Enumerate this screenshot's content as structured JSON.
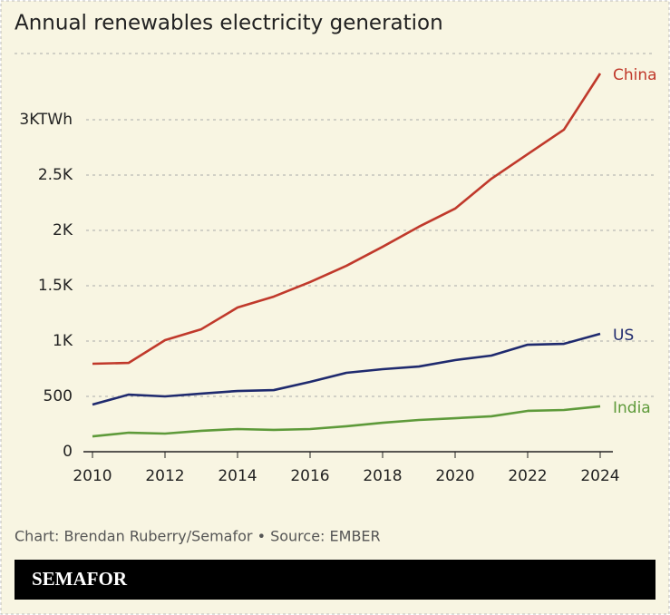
{
  "chart_data": {
    "type": "line",
    "title": "Annual renewables electricity generation",
    "x": [
      2010,
      2011,
      2012,
      2013,
      2014,
      2015,
      2016,
      2017,
      2018,
      2019,
      2020,
      2021,
      2022,
      2023,
      2024
    ],
    "series": [
      {
        "name": "China",
        "color": "#c0392b",
        "values": [
          795,
          803,
          1008,
          1107,
          1303,
          1402,
          1533,
          1680,
          1852,
          2033,
          2197,
          2467,
          2689,
          2910,
          3418
        ]
      },
      {
        "name": "US",
        "color": "#1f2a6e",
        "values": [
          426,
          516,
          500,
          525,
          549,
          557,
          631,
          713,
          746,
          770,
          828,
          869,
          967,
          975,
          1066
        ]
      },
      {
        "name": "India",
        "color": "#5e9a3a",
        "values": [
          139,
          172,
          164,
          189,
          205,
          197,
          205,
          230,
          262,
          287,
          303,
          320,
          369,
          377,
          410
        ]
      }
    ],
    "xlim": [
      2010,
      2024
    ],
    "xticks": [
      2010,
      2012,
      2014,
      2016,
      2018,
      2020,
      2022,
      2024
    ],
    "ylim": [
      0,
      3600
    ],
    "yticks": [
      0,
      500,
      {
        "value": 1000,
        "label": "1K"
      },
      {
        "value": 1500,
        "label": "1.5K"
      },
      {
        "value": 2000,
        "label": "2K"
      },
      {
        "value": 2500,
        "label": "2.5K"
      },
      {
        "value": 3000,
        "label": "3KTWh"
      }
    ],
    "grid": true
  },
  "footer": {
    "source": "Chart: Brendan Ruberry/Semafor • Source: EMBER",
    "brand": "SEMAFOR"
  }
}
